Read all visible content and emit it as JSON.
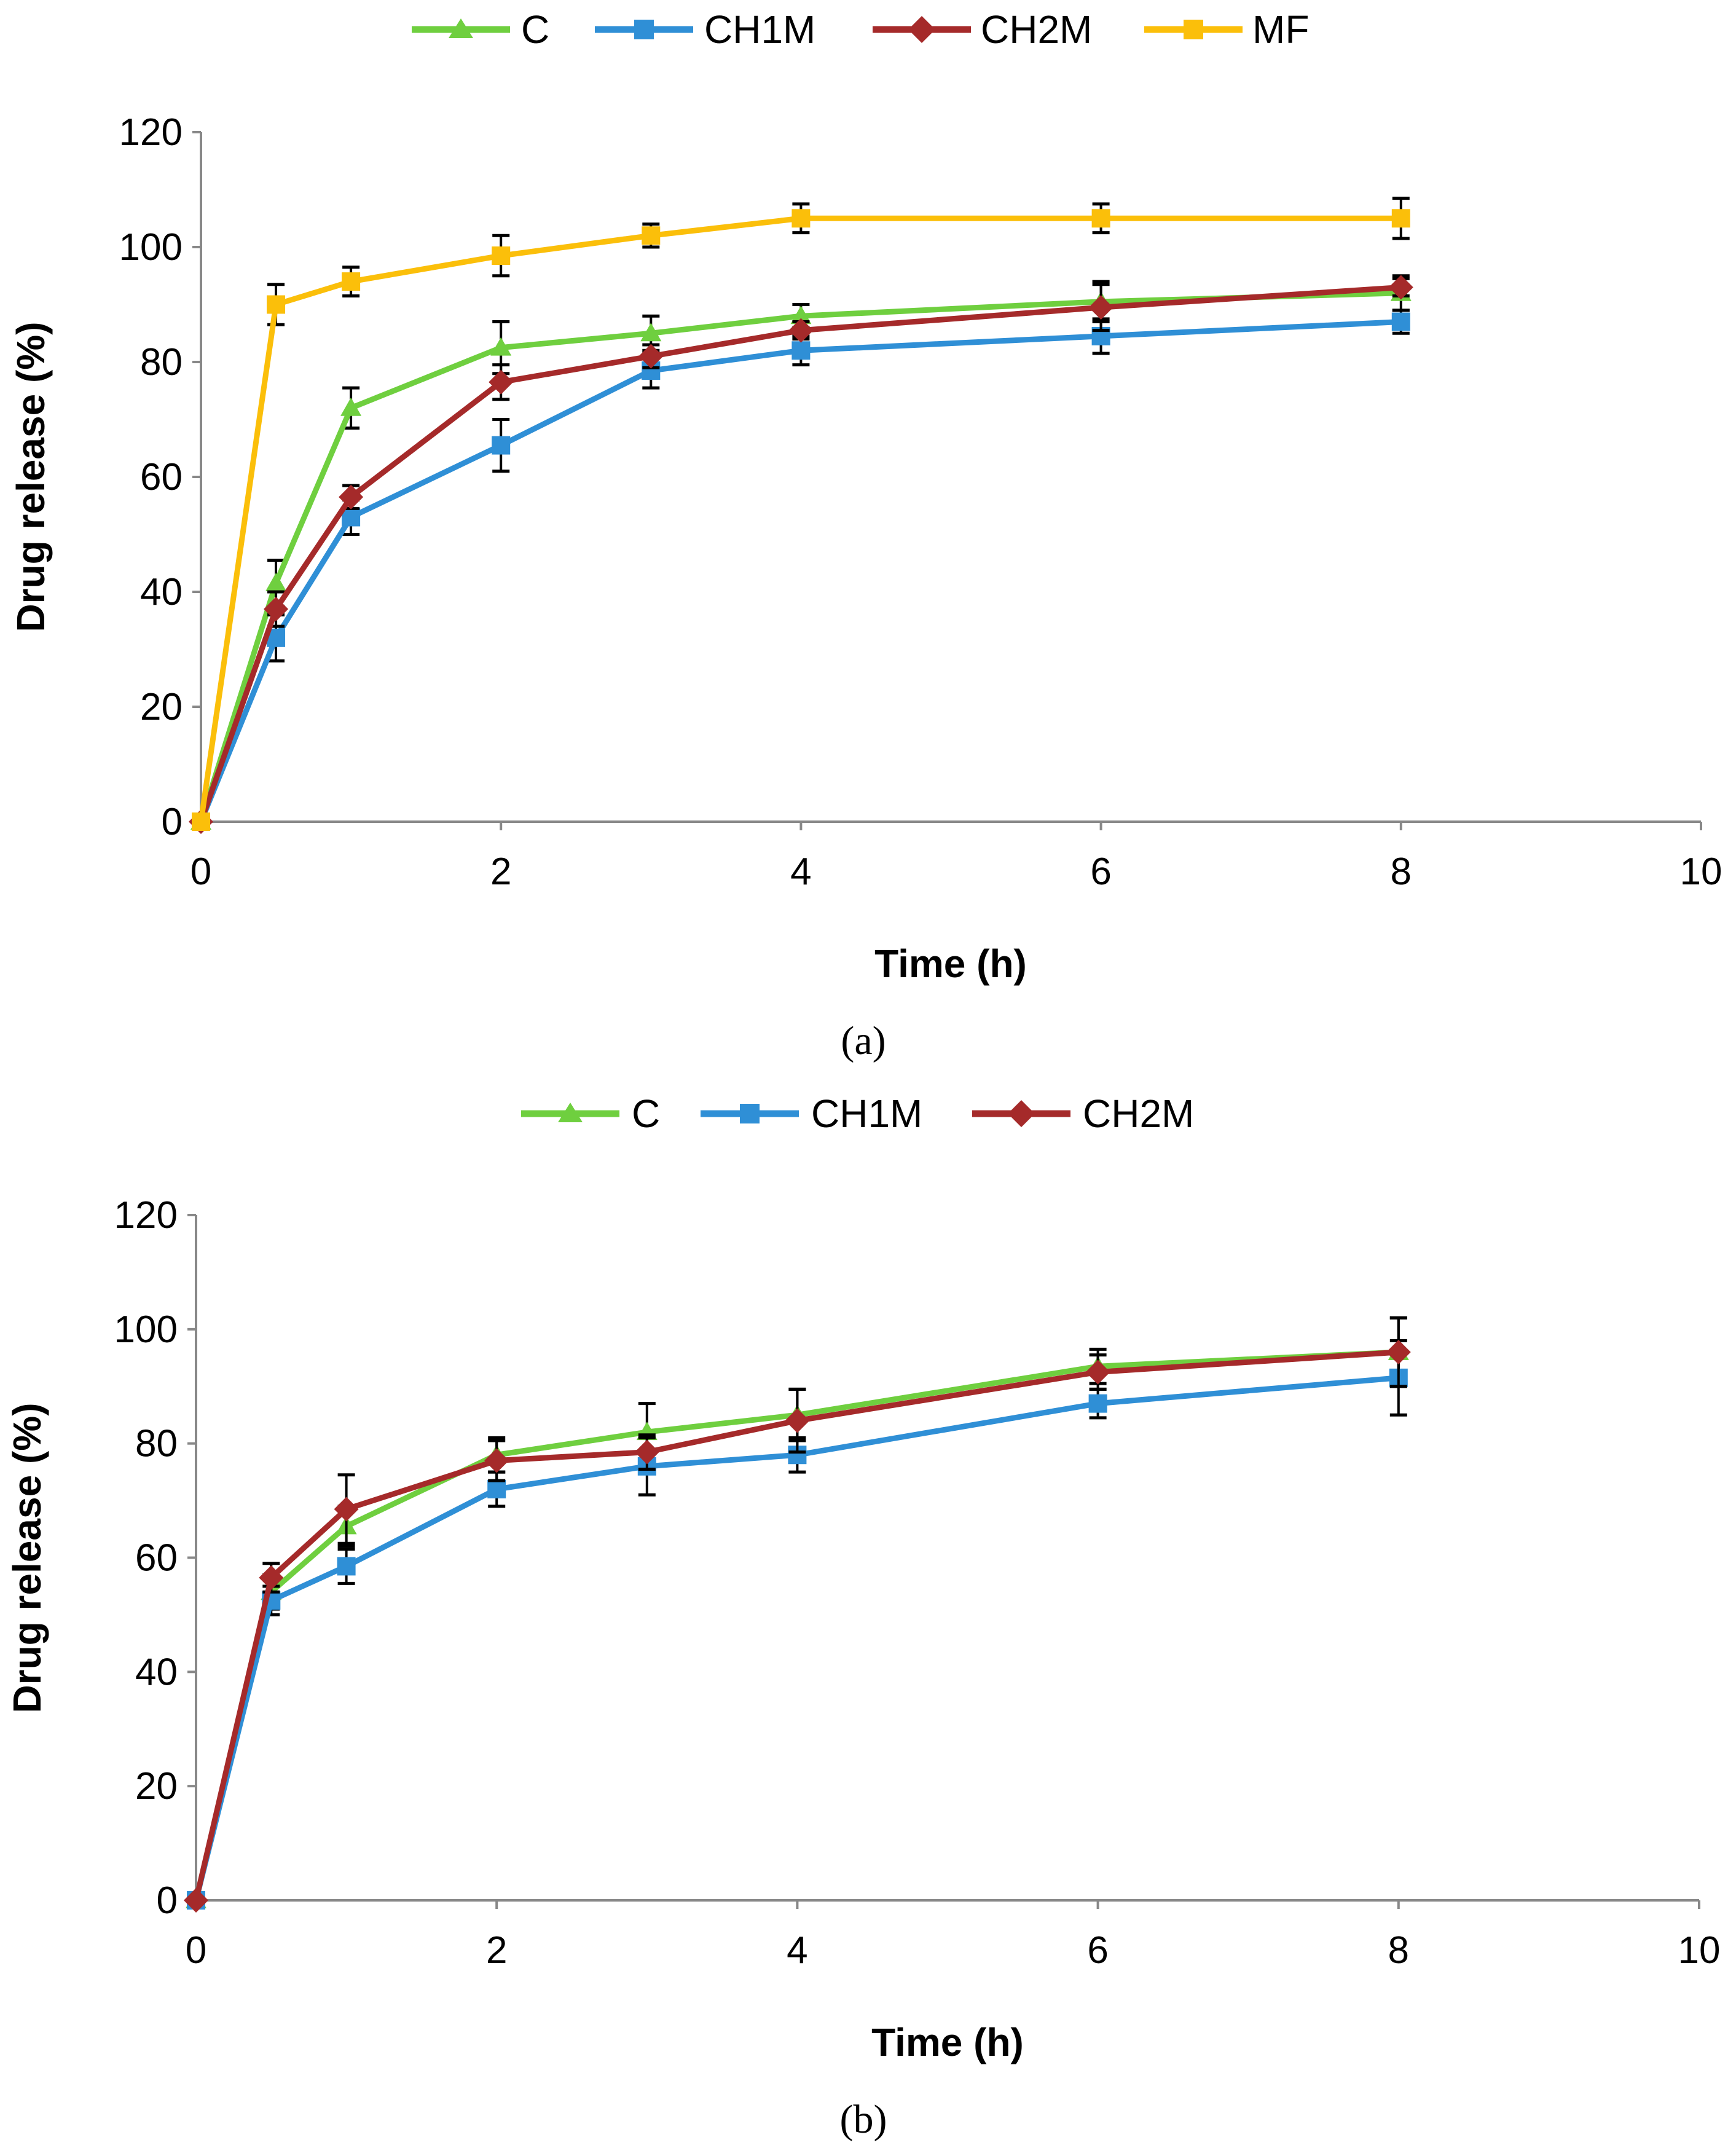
{
  "colors": {
    "C": "#6fcf3f",
    "CH1M": "#2f8fd6",
    "CH2M": "#a52a2a",
    "MF": "#fbbf0a",
    "axis": "#888888",
    "error": "#000000"
  },
  "chart_data": [
    {
      "type": "line",
      "panel_label": "(a)",
      "xlabel": "Time (h)",
      "ylabel": "Drug release (%)",
      "xlim": [
        0,
        10
      ],
      "ylim": [
        0,
        120
      ],
      "xticks": [
        0,
        2,
        4,
        6,
        8,
        10
      ],
      "yticks": [
        0,
        20,
        40,
        60,
        80,
        100,
        120
      ],
      "legend_position": "top-center",
      "x": [
        0,
        0.5,
        1,
        2,
        3,
        4,
        6,
        8
      ],
      "series": [
        {
          "name": "C",
          "marker": "triangle",
          "values": [
            0,
            41.5,
            72,
            82.5,
            85,
            88,
            90.5,
            92
          ],
          "errors": [
            0,
            4,
            3.5,
            4.5,
            3,
            2,
            3.5,
            3
          ]
        },
        {
          "name": "CH1M",
          "marker": "square",
          "values": [
            0,
            32,
            53,
            65.5,
            78.5,
            82,
            84.5,
            87
          ],
          "errors": [
            0,
            4,
            3,
            4.5,
            3,
            2.5,
            3,
            2
          ]
        },
        {
          "name": "CH2M",
          "marker": "diamond",
          "values": [
            0,
            37,
            56.5,
            76.5,
            81,
            85.5,
            89.5,
            93
          ],
          "errors": [
            0,
            3,
            2,
            3,
            2,
            1.5,
            4,
            1.5
          ]
        },
        {
          "name": "MF",
          "marker": "square",
          "values": [
            0,
            90,
            94,
            98.5,
            102,
            105,
            105,
            105
          ],
          "errors": [
            0,
            3.5,
            2.5,
            3.5,
            2,
            2.5,
            2.5,
            3.5
          ]
        }
      ]
    },
    {
      "type": "line",
      "panel_label": "(b)",
      "xlabel": "Time (h)",
      "ylabel": "Drug release (%)",
      "xlim": [
        0,
        10
      ],
      "ylim": [
        0,
        120
      ],
      "xticks": [
        0,
        2,
        4,
        6,
        8,
        10
      ],
      "yticks": [
        0,
        20,
        40,
        60,
        80,
        100,
        120
      ],
      "legend_position": "top-center",
      "x": [
        0,
        0.5,
        1,
        2,
        3,
        4,
        6,
        8
      ],
      "series": [
        {
          "name": "C",
          "marker": "triangle",
          "values": [
            0,
            54,
            65.5,
            78,
            82,
            85,
            93.5,
            96
          ],
          "errors": [
            0,
            3,
            3.5,
            3,
            5,
            4.5,
            3,
            6
          ]
        },
        {
          "name": "CH1M",
          "marker": "square",
          "values": [
            0,
            52.5,
            58.5,
            72,
            76,
            78,
            87,
            91.5
          ],
          "errors": [
            0,
            2.5,
            3,
            3,
            5,
            3,
            2.5,
            6.5
          ]
        },
        {
          "name": "CH2M",
          "marker": "diamond",
          "values": [
            0,
            56.5,
            68.5,
            77,
            78.5,
            84,
            92.5,
            96
          ],
          "errors": [
            0,
            2.5,
            6,
            3.5,
            3,
            5.5,
            3,
            6
          ]
        }
      ]
    }
  ]
}
